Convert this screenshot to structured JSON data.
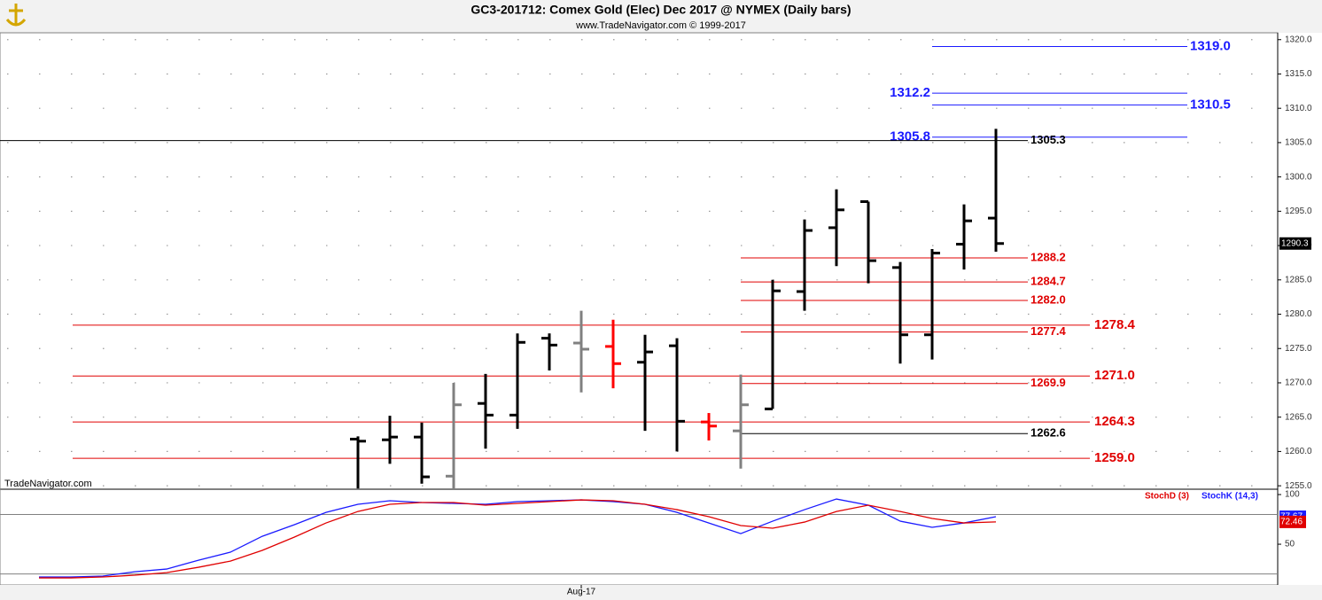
{
  "chart_data": [
    {
      "type": "ohlc",
      "title": "GC3-201712:  Comex Gold (Elec) Dec 2017 @ NYMEX  (Daily bars)",
      "subtitle": "www.TradeNavigator.com © 1999-2017",
      "watermark": "TradeNavigator.com",
      "categories": [
        null,
        null,
        null,
        null,
        null,
        null,
        null,
        null,
        null,
        null,
        null,
        null,
        null,
        null,
        null,
        null,
        null,
        "Aug-17",
        null,
        null,
        null,
        null,
        null,
        null,
        null,
        null,
        null,
        null,
        null,
        null,
        null
      ],
      "open": [
        null,
        null,
        null,
        null,
        null,
        null,
        null,
        null,
        null,
        null,
        1261.8,
        1261.7,
        1262.1,
        1256.4,
        1267.0,
        1265.3,
        1276.5,
        1275.8,
        1275.3,
        1273.0,
        1275.4,
        1264.3,
        1263.0,
        1266.2,
        1283.3,
        1292.6,
        1296.4,
        1286.8,
        1277.0,
        1290.2,
        1294.0
      ],
      "high": [
        null,
        null,
        null,
        null,
        null,
        null,
        null,
        null,
        null,
        null,
        1262.2,
        1265.2,
        1264.2,
        1270.0,
        1271.3,
        1277.2,
        1277.2,
        1280.5,
        1279.2,
        1277.0,
        1276.5,
        1265.6,
        1271.2,
        1285.0,
        1293.8,
        1298.2,
        1296.4,
        1287.6,
        1289.5,
        1296.0,
        1307.0
      ],
      "low": [
        null,
        null,
        null,
        null,
        null,
        null,
        null,
        null,
        null,
        null,
        1254.6,
        1258.2,
        1255.3,
        1254.6,
        1260.4,
        1263.3,
        1271.8,
        1268.6,
        1269.2,
        1263.0,
        1260.0,
        1261.6,
        1257.5,
        1266.2,
        1280.5,
        1287.0,
        1284.5,
        1272.8,
        1273.4,
        1286.5,
        1289.1
      ],
      "close": [
        null,
        null,
        null,
        null,
        null,
        null,
        null,
        null,
        null,
        null,
        1261.5,
        1262.1,
        1256.3,
        1266.8,
        1265.3,
        1275.9,
        1275.5,
        1274.9,
        1272.8,
        1274.5,
        1264.4,
        1263.7,
        1266.8,
        1283.4,
        1292.2,
        1295.2,
        1287.8,
        1277.0,
        1288.9,
        1293.6,
        1290.3
      ],
      "bar_colors": [
        null,
        null,
        null,
        null,
        null,
        null,
        null,
        null,
        null,
        null,
        "#000000",
        "#000000",
        "#000000",
        "#808080",
        "#000000",
        "#000000",
        "#000000",
        "#808080",
        "#ff0000",
        "#000000",
        "#000000",
        "#ff0000",
        "#808080",
        "#000000",
        "#000000",
        "#000000",
        "#000000",
        "#000000",
        "#000000",
        "#000000",
        "#000000"
      ],
      "ylim": [
        1254.5,
        1321
      ],
      "yticks": [
        {
          "value": 1255,
          "label": "1255.0"
        },
        {
          "value": 1260,
          "label": "1260.0"
        },
        {
          "value": 1265,
          "label": "1265.0"
        },
        {
          "value": 1270,
          "label": "1270.0"
        },
        {
          "value": 1275,
          "label": "1275.0"
        },
        {
          "value": 1280,
          "label": "1280.0"
        },
        {
          "value": 1285,
          "label": "1285.0"
        },
        {
          "value": 1290,
          "label": "1290.0"
        },
        {
          "value": 1295,
          "label": "1295.0"
        },
        {
          "value": 1300,
          "label": "1300.0"
        },
        {
          "value": 1305,
          "label": "1305.0"
        },
        {
          "value": 1310,
          "label": "1310.0"
        },
        {
          "value": 1315,
          "label": "1315.0"
        },
        {
          "value": 1320,
          "label": "1320.0"
        }
      ],
      "grid": true,
      "levels": [
        {
          "value": 1319,
          "label": "1319.0",
          "color": "#1a1aff"
        },
        {
          "value": 1312.2,
          "color": "#1a1aff"
        },
        {
          "value": 1310.5,
          "color": "#1a1aff"
        },
        {
          "value": 1305.8,
          "color": "#1a1aff"
        },
        {
          "value": 1305.3,
          "color": "#000000"
        },
        {
          "value": 1288.2,
          "color": "#e00000"
        },
        {
          "value": 1284.7,
          "color": "#e00000"
        },
        {
          "value": 1282,
          "label": "1282.0",
          "color": "#e00000"
        },
        {
          "value": 1278.4,
          "color": "#e00000"
        },
        {
          "value": 1277.4,
          "color": "#e00000"
        },
        {
          "value": 1271,
          "label": "1271.0",
          "color": "#e00000"
        },
        {
          "value": 1269.9,
          "color": "#e00000"
        },
        {
          "value": 1264.3,
          "color": "#e00000"
        },
        {
          "value": 1262.6,
          "color": "#000000"
        },
        {
          "value": 1259,
          "label": "1259.0",
          "color": "#e00000"
        }
      ]
    },
    {
      "type": "line",
      "series": [
        {
          "name": "StochD (3)",
          "color": "#e00000",
          "values": [
            16.1,
            16.1,
            17.0,
            18.8,
            21.4,
            26.8,
            33.0,
            43.8,
            57.1,
            71.4,
            83.0,
            90.2,
            92.0,
            92.0,
            89.3,
            91.1,
            92.9,
            94.6,
            93.8,
            90.2,
            84.8,
            77.7,
            68.8,
            66.1,
            72.3,
            83.0,
            89.3,
            83.0,
            75.9,
            71.4,
            72.46
          ]
        },
        {
          "name": "StochK (14,3)",
          "color": "#1a1aff",
          "values": [
            17.0,
            17.0,
            17.9,
            22.3,
            25.0,
            33.9,
            42.0,
            58.0,
            69.6,
            82.1,
            90.2,
            93.8,
            92.0,
            91.1,
            90.2,
            92.9,
            93.8,
            94.6,
            92.9,
            90.2,
            82.1,
            71.4,
            60.7,
            73.2,
            84.8,
            95.5,
            89.3,
            73.2,
            67.0,
            71.4,
            77.67
          ]
        }
      ],
      "ylim": [
        9,
        102.7
      ],
      "yticks": [
        50,
        100
      ],
      "levels": [
        20,
        80
      ]
    }
  ]
}
